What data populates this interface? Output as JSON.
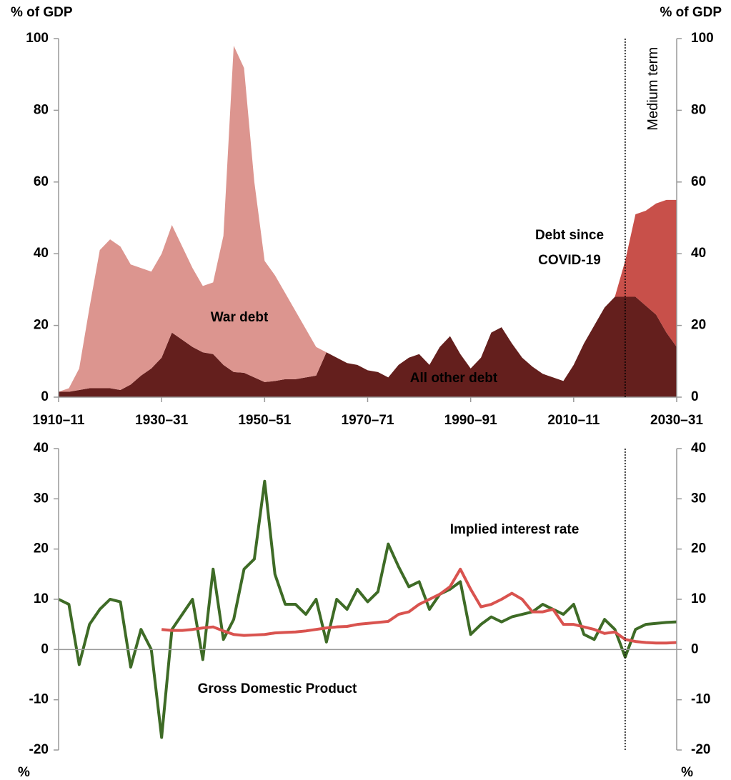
{
  "chart_data": [
    {
      "type": "area",
      "stacked": true,
      "ylabel": "% of GDP",
      "x": [
        1910,
        1912,
        1914,
        1916,
        1918,
        1920,
        1922,
        1924,
        1926,
        1928,
        1930,
        1932,
        1934,
        1936,
        1938,
        1940,
        1942,
        1944,
        1946,
        1948,
        1950,
        1952,
        1954,
        1956,
        1958,
        1960,
        1962,
        1964,
        1966,
        1968,
        1970,
        1972,
        1974,
        1976,
        1978,
        1980,
        1982,
        1984,
        1986,
        1988,
        1990,
        1992,
        1994,
        1996,
        1998,
        2000,
        2002,
        2004,
        2006,
        2008,
        2010,
        2012,
        2014,
        2016,
        2018,
        2020,
        2022,
        2024,
        2026,
        2028,
        2030
      ],
      "xlim": [
        1910,
        2030
      ],
      "xticks": [
        {
          "value": 1910,
          "label": "1910–11"
        },
        {
          "value": 1930,
          "label": "1930–31"
        },
        {
          "value": 1950,
          "label": "1950–51"
        },
        {
          "value": 1970,
          "label": "1970–71"
        },
        {
          "value": 1990,
          "label": "1990–91"
        },
        {
          "value": 2010,
          "label": "2010–11"
        },
        {
          "value": 2030,
          "label": "2030–31"
        }
      ],
      "ylim": [
        0,
        100
      ],
      "yticks": [
        0,
        20,
        40,
        60,
        80,
        100
      ],
      "reference_line": {
        "x": 2020,
        "label": "Medium term"
      },
      "series": [
        {
          "name": "All other debt",
          "color": "#641f1d",
          "values": [
            1.5,
            1.5,
            2,
            2.5,
            2.5,
            2.5,
            2,
            3.5,
            6,
            8,
            11,
            18,
            16,
            14,
            12.5,
            12,
            9,
            7,
            6.8,
            5.5,
            4.2,
            4.5,
            5,
            5,
            5.5,
            6,
            12.5,
            11,
            9.5,
            9,
            7.5,
            7,
            5.5,
            9,
            11,
            12,
            9,
            14,
            17,
            12,
            8,
            11,
            18,
            19.5,
            15,
            11,
            8.5,
            6.5,
            5.5,
            4.5,
            9,
            15,
            20,
            25,
            28,
            28,
            28,
            25.5,
            23,
            18,
            14
          ]
        },
        {
          "name": "War debt",
          "color": "#dc958f",
          "values": [
            0,
            1,
            6,
            22.5,
            38.5,
            41.5,
            40,
            33.5,
            30,
            27,
            29,
            30,
            26,
            22,
            18.5,
            20,
            36,
            91,
            85,
            54.5,
            33.8,
            29.5,
            24,
            19,
            13.5,
            8,
            0,
            0,
            0,
            0,
            0,
            0,
            0,
            0,
            0,
            0,
            0,
            0,
            0,
            0,
            0,
            0,
            0,
            0,
            0,
            0,
            0,
            0,
            0,
            0,
            0,
            0,
            0,
            0,
            0,
            0,
            0,
            0,
            0,
            0,
            0
          ]
        },
        {
          "name": "Debt since COVID-19",
          "color": "#c8504a",
          "values": [
            0,
            0,
            0,
            0,
            0,
            0,
            0,
            0,
            0,
            0,
            0,
            0,
            0,
            0,
            0,
            0,
            0,
            0,
            0,
            0,
            0,
            0,
            0,
            0,
            0,
            0,
            0,
            0,
            0,
            0,
            0,
            0,
            0,
            0,
            0,
            0,
            0,
            0,
            0,
            0,
            0,
            0,
            0,
            0,
            0,
            0,
            0,
            0,
            0,
            0,
            0,
            0,
            0,
            0,
            0,
            10,
            23,
            26.5,
            31,
            37,
            41
          ]
        }
      ]
    },
    {
      "type": "line",
      "ylabel": "%",
      "x": [
        1910,
        1912,
        1914,
        1916,
        1918,
        1920,
        1922,
        1924,
        1926,
        1928,
        1930,
        1932,
        1934,
        1936,
        1938,
        1940,
        1942,
        1944,
        1946,
        1948,
        1950,
        1952,
        1954,
        1956,
        1958,
        1960,
        1962,
        1964,
        1966,
        1968,
        1970,
        1972,
        1974,
        1976,
        1978,
        1980,
        1982,
        1984,
        1986,
        1988,
        1990,
        1992,
        1994,
        1996,
        1998,
        2000,
        2002,
        2004,
        2006,
        2008,
        2010,
        2012,
        2014,
        2016,
        2018,
        2020,
        2022,
        2024,
        2026,
        2028,
        2030
      ],
      "xlim": [
        1910,
        2030
      ],
      "ylim": [
        -20,
        40
      ],
      "yticks": [
        -20,
        -10,
        0,
        10,
        20,
        30,
        40
      ],
      "reference_line": {
        "x": 2020
      },
      "series": [
        {
          "name": "Gross Domestic Product",
          "color": "#3e6b26",
          "values": [
            10,
            9,
            -3,
            5,
            8,
            10,
            9.5,
            -3.5,
            4,
            0,
            -17.5,
            4,
            7,
            10,
            -2,
            16,
            2,
            6,
            16,
            18,
            33.5,
            15,
            9,
            9,
            7,
            10,
            1.5,
            10,
            8,
            12,
            9.5,
            11.5,
            21,
            16.5,
            12.5,
            13.5,
            8,
            11,
            12,
            13.5,
            3,
            5,
            6.5,
            5.5,
            6.5,
            7,
            7.5,
            9,
            8,
            7,
            9,
            3,
            2,
            6,
            4,
            -1.5,
            4,
            5,
            5.2,
            5.4,
            5.5
          ]
        },
        {
          "name": "Implied interest rate",
          "color": "#d9534f",
          "values": [
            null,
            null,
            null,
            null,
            null,
            null,
            null,
            null,
            null,
            null,
            4,
            3.8,
            3.8,
            4,
            4.3,
            4.5,
            3.7,
            3,
            2.8,
            2.9,
            3,
            3.3,
            3.4,
            3.5,
            3.7,
            4,
            4.3,
            4.5,
            4.6,
            5,
            5.2,
            5.4,
            5.6,
            7,
            7.5,
            9,
            10,
            11,
            12.5,
            16,
            12,
            8.5,
            9,
            10,
            11.2,
            10,
            7.5,
            7.5,
            8,
            5,
            5,
            4.5,
            4,
            3.2,
            3.5,
            2,
            1.6,
            1.4,
            1.3,
            1.3,
            1.4
          ]
        }
      ]
    }
  ]
}
